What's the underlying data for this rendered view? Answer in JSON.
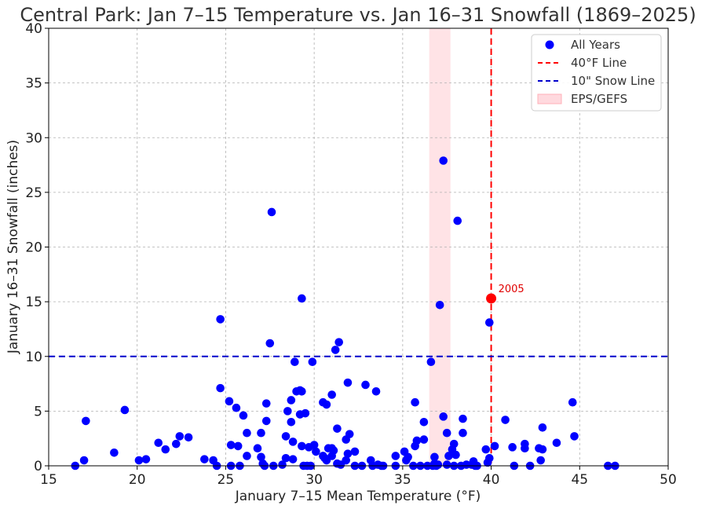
{
  "chart_data": {
    "type": "scatter",
    "title": "Central Park: Jan 7–15 Temperature vs. Jan 16–31 Snowfall (1869–2025)",
    "xlabel": "January 7–15 Mean Temperature (°F)",
    "ylabel": "January 16–31 Snowfall (inches)",
    "xlim": [
      15,
      50
    ],
    "ylim": [
      0,
      40
    ],
    "xticks": [
      15,
      20,
      25,
      30,
      35,
      40,
      45,
      50
    ],
    "yticks": [
      0,
      5,
      10,
      15,
      20,
      25,
      30,
      35,
      40
    ],
    "grid": true,
    "legend_position": "top-right",
    "colors": {
      "points": "#0000ff",
      "highlight": "#ff0000",
      "temp_line": "#ff0000",
      "snow_line": "#0000cc",
      "band": "#ffc0c8"
    },
    "series": [
      {
        "name": "All Years",
        "points": [
          [
            16.5,
            0
          ],
          [
            17,
            0.5
          ],
          [
            17.1,
            4.1
          ],
          [
            18.7,
            1.2
          ],
          [
            19.3,
            5.1
          ],
          [
            20.1,
            0.5
          ],
          [
            20.5,
            0.6
          ],
          [
            21.2,
            2.1
          ],
          [
            21.6,
            1.5
          ],
          [
            22.2,
            2
          ],
          [
            22.4,
            2.7
          ],
          [
            22.9,
            2.6
          ],
          [
            23.8,
            0.6
          ],
          [
            24.3,
            0.5
          ],
          [
            24.5,
            0
          ],
          [
            24.7,
            13.4
          ],
          [
            24.7,
            7.1
          ],
          [
            25.2,
            5.9
          ],
          [
            25.3,
            1.9
          ],
          [
            25.3,
            0
          ],
          [
            25.6,
            5.3
          ],
          [
            25.7,
            1.8
          ],
          [
            25.8,
            0
          ],
          [
            26,
            4.6
          ],
          [
            26.2,
            0.9
          ],
          [
            26.2,
            3
          ],
          [
            26.8,
            1.6
          ],
          [
            27,
            3
          ],
          [
            27,
            0.8
          ],
          [
            27.1,
            0.2
          ],
          [
            27.2,
            0
          ],
          [
            27.3,
            4.1
          ],
          [
            27.3,
            5.7
          ],
          [
            27.5,
            11.2
          ],
          [
            27.6,
            23.2
          ],
          [
            27.7,
            0
          ],
          [
            28.2,
            0.1
          ],
          [
            28.4,
            2.7
          ],
          [
            28.4,
            0.7
          ],
          [
            28.5,
            5
          ],
          [
            28.7,
            4
          ],
          [
            28.7,
            6
          ],
          [
            28.8,
            2.2
          ],
          [
            28.8,
            0.6
          ],
          [
            28.9,
            9.5
          ],
          [
            29,
            6.8
          ],
          [
            29.2,
            4.7
          ],
          [
            29.2,
            6.9
          ],
          [
            29.3,
            6.8
          ],
          [
            29.3,
            15.3
          ],
          [
            29.3,
            1.8
          ],
          [
            29.4,
            0
          ],
          [
            29.5,
            4.8
          ],
          [
            29.6,
            0
          ],
          [
            29.7,
            1.7
          ],
          [
            29.8,
            0
          ],
          [
            29.9,
            9.5
          ],
          [
            30,
            1.9
          ],
          [
            30.1,
            1.3
          ],
          [
            30.5,
            5.8
          ],
          [
            30.5,
            0.9
          ],
          [
            30.6,
            0.7
          ],
          [
            30.7,
            5.6
          ],
          [
            30.7,
            0.5
          ],
          [
            30.8,
            1.6
          ],
          [
            31,
            6.5
          ],
          [
            31,
            1.6
          ],
          [
            31,
            0.9
          ],
          [
            31.1,
            1.4
          ],
          [
            31.2,
            10.6
          ],
          [
            31.3,
            0.2
          ],
          [
            31.3,
            3.4
          ],
          [
            31.4,
            11.3
          ],
          [
            31.5,
            0.1
          ],
          [
            31.8,
            0.5
          ],
          [
            31.8,
            2.4
          ],
          [
            31.9,
            7.6
          ],
          [
            31.9,
            1.1
          ],
          [
            32,
            2.9
          ],
          [
            32.3,
            1.3
          ],
          [
            32.3,
            0
          ],
          [
            32.7,
            0
          ],
          [
            32.9,
            7.4
          ],
          [
            33.2,
            0.5
          ],
          [
            33.3,
            0
          ],
          [
            33.5,
            6.8
          ],
          [
            33.6,
            0.1
          ],
          [
            33.8,
            0
          ],
          [
            33.9,
            0
          ],
          [
            34.6,
            0.9
          ],
          [
            34.6,
            0
          ],
          [
            35.1,
            1.3
          ],
          [
            35.2,
            0.5
          ],
          [
            35.3,
            0.8
          ],
          [
            35.6,
            0
          ],
          [
            35.7,
            1.8
          ],
          [
            35.7,
            5.8
          ],
          [
            35.8,
            2.3
          ],
          [
            36,
            0
          ],
          [
            36.2,
            4
          ],
          [
            36.2,
            2.4
          ],
          [
            36.4,
            0
          ],
          [
            36.6,
            9.5
          ],
          [
            36.7,
            0
          ],
          [
            36.8,
            0.8
          ],
          [
            36.8,
            0.2
          ],
          [
            36.9,
            0
          ],
          [
            37,
            0.1
          ],
          [
            37.1,
            14.7
          ],
          [
            37.3,
            27.9
          ],
          [
            37.3,
            4.5
          ],
          [
            37.5,
            3
          ],
          [
            37.5,
            0.1
          ],
          [
            37.6,
            0.9
          ],
          [
            37.8,
            1.5
          ],
          [
            37.9,
            2
          ],
          [
            37.9,
            0
          ],
          [
            38,
            1
          ],
          [
            38.1,
            22.4
          ],
          [
            38.3,
            0
          ],
          [
            38.4,
            4.3
          ],
          [
            38.4,
            3
          ],
          [
            38.6,
            0.1
          ],
          [
            38.9,
            0.1
          ],
          [
            39,
            0.4
          ],
          [
            39.1,
            0
          ],
          [
            39.2,
            0
          ],
          [
            39.7,
            1.5
          ],
          [
            39.8,
            0.3
          ],
          [
            39.9,
            0.7
          ],
          [
            39.9,
            13.1
          ],
          [
            40.2,
            1.8
          ],
          [
            40.8,
            4.2
          ],
          [
            41.2,
            1.7
          ],
          [
            41.3,
            0
          ],
          [
            41.9,
            2
          ],
          [
            41.9,
            1.6
          ],
          [
            42.2,
            0
          ],
          [
            42.7,
            1.6
          ],
          [
            42.8,
            0.5
          ],
          [
            42.9,
            3.5
          ],
          [
            42.9,
            1.5
          ],
          [
            43.7,
            2.1
          ],
          [
            44.6,
            5.8
          ],
          [
            44.7,
            2.7
          ],
          [
            46.6,
            0
          ],
          [
            47,
            0
          ]
        ]
      }
    ],
    "highlight": {
      "label": "2005",
      "x": 40.0,
      "y": 15.3
    },
    "reference_lines": [
      {
        "name": "40°F Line",
        "orientation": "vertical",
        "value": 40
      },
      {
        "name": "10\" Snow Line",
        "orientation": "horizontal",
        "value": 10
      }
    ],
    "band": {
      "name": "EPS/GEFS",
      "from": 36.5,
      "to": 37.7
    },
    "legend": [
      "All Years",
      "40°F Line",
      "10\" Snow Line",
      "EPS/GEFS"
    ]
  }
}
